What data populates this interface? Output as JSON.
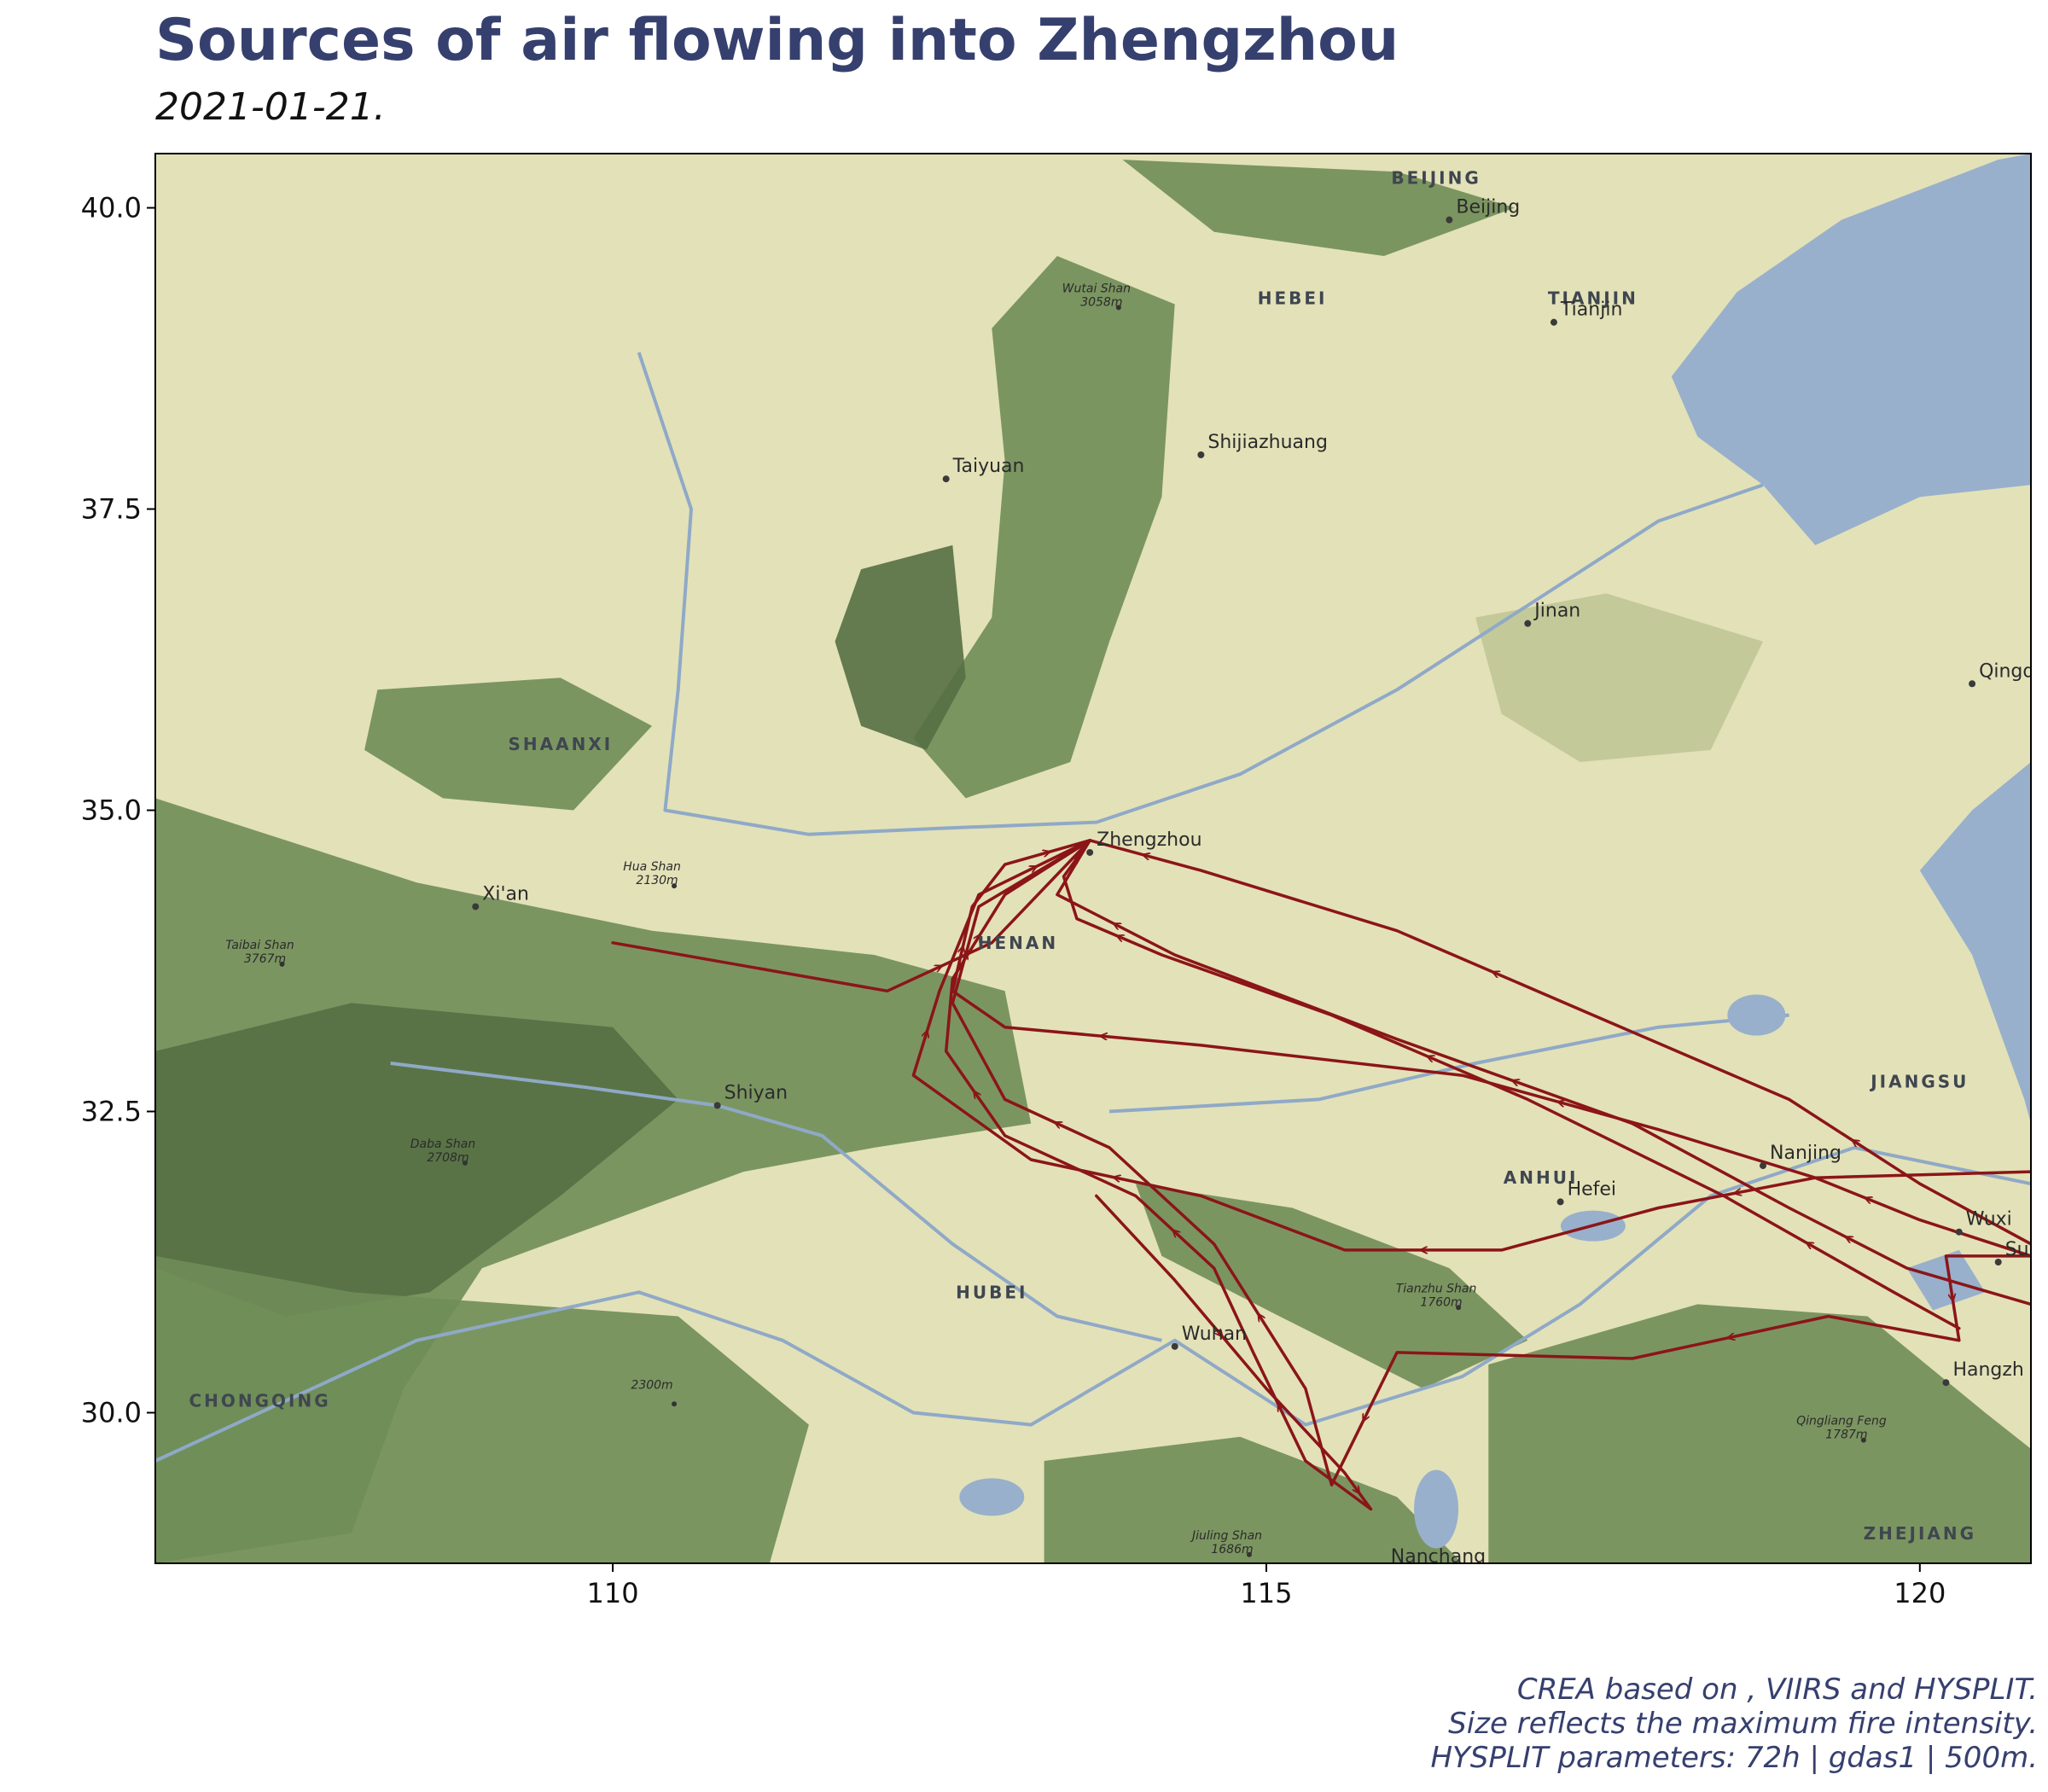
{
  "title": "Sources of air flowing into Zhengzhou",
  "subtitle": "2021-01-21.",
  "caption": [
    "CREA based on , VIIRS and HYSPLIT.",
    "Size reflects the maximum fire intensity.",
    "HYSPLIT parameters: 72h | gdas1 | 500m."
  ],
  "map": {
    "lon_range": [
      106.5,
      120.85
    ],
    "lat_range": [
      28.75,
      40.45
    ],
    "x_ticks": [
      110,
      115,
      120
    ],
    "y_ticks": [
      30.0,
      32.5,
      35.0,
      37.5,
      40.0
    ],
    "colors": {
      "trajectory": "#8b1518",
      "water": "#98b0cc",
      "land": "#e3e1b8",
      "mountain": "#6f8d58",
      "mountain_dark": "#556f44"
    },
    "places": [
      {
        "name": "Beijing",
        "lon": 116.4,
        "lat": 39.9
      },
      {
        "name": "Tianjin",
        "lon": 117.2,
        "lat": 39.05
      },
      {
        "name": "Shijiazhuang",
        "lon": 114.5,
        "lat": 37.95
      },
      {
        "name": "Taiyuan",
        "lon": 112.55,
        "lat": 37.75
      },
      {
        "name": "Jinan",
        "lon": 117.0,
        "lat": 36.55
      },
      {
        "name": "Qingd",
        "lon": 120.4,
        "lat": 36.05
      },
      {
        "name": "Zhengzhou",
        "lon": 113.65,
        "lat": 34.65
      },
      {
        "name": "Xi'an",
        "lon": 108.95,
        "lat": 34.2
      },
      {
        "name": "Shiyan",
        "lon": 110.8,
        "lat": 32.55
      },
      {
        "name": "Nanjing",
        "lon": 118.8,
        "lat": 32.05
      },
      {
        "name": "Hefei",
        "lon": 117.25,
        "lat": 31.75
      },
      {
        "name": "Wuxi",
        "lon": 120.3,
        "lat": 31.5
      },
      {
        "name": "Su",
        "lon": 120.6,
        "lat": 31.25
      },
      {
        "name": "Wuhan",
        "lon": 114.3,
        "lat": 30.55
      },
      {
        "name": "Hangzh",
        "lon": 120.2,
        "lat": 30.25
      },
      {
        "name": "Nanchang",
        "lon": 115.9,
        "lat": 28.7
      }
    ],
    "regions": [
      {
        "name": "BEIJING",
        "lon": 116.3,
        "lat": 40.2
      },
      {
        "name": "HEBEI",
        "lon": 115.2,
        "lat": 39.2
      },
      {
        "name": "TIANJIN",
        "lon": 117.5,
        "lat": 39.2
      },
      {
        "name": "SHAANXI",
        "lon": 109.6,
        "lat": 35.5
      },
      {
        "name": "HENAN",
        "lon": 113.1,
        "lat": 33.85
      },
      {
        "name": "JIANGSU",
        "lon": 120.0,
        "lat": 32.7
      },
      {
        "name": "ANHUI",
        "lon": 117.1,
        "lat": 31.9
      },
      {
        "name": "HUBEI",
        "lon": 112.9,
        "lat": 30.95
      },
      {
        "name": "CHONGQING",
        "lon": 107.3,
        "lat": 30.05
      },
      {
        "name": "ZHEJIANG",
        "lon": 120.0,
        "lat": 28.95
      }
    ],
    "peaks": [
      {
        "name": "Wutai Shan",
        "elev": "3058m",
        "lon": 113.7,
        "lat": 39.3
      },
      {
        "name": "Hua Shan",
        "elev": "2130m",
        "lon": 110.3,
        "lat": 34.5
      },
      {
        "name": "Taibai Shan",
        "elev": "3767m",
        "lon": 107.3,
        "lat": 33.85
      },
      {
        "name": "Daba Shan",
        "elev": "2708m",
        "lon": 108.7,
        "lat": 32.2
      },
      {
        "name": "Tianzhu Shan",
        "elev": "1760m",
        "lon": 116.3,
        "lat": 31.0
      },
      {
        "name": "",
        "elev": "2300m",
        "lon": 110.3,
        "lat": 30.2
      },
      {
        "name": "Qingliang Feng",
        "elev": "1787m",
        "lon": 119.4,
        "lat": 29.9
      },
      {
        "name": "Jiuling Shan",
        "elev": "1686m",
        "lon": 114.7,
        "lat": 28.95
      }
    ],
    "trajectories": [
      [
        [
          113.65,
          34.75
        ],
        [
          113.0,
          34.55
        ],
        [
          112.75,
          34.2
        ],
        [
          112.6,
          33.5
        ],
        [
          113.0,
          33.2
        ],
        [
          114.5,
          33.05
        ],
        [
          116.5,
          32.8
        ],
        [
          118.0,
          32.35
        ],
        [
          119.2,
          31.95
        ],
        [
          120.0,
          31.6
        ],
        [
          120.85,
          31.3
        ]
      ],
      [
        [
          113.65,
          34.75
        ],
        [
          113.45,
          34.45
        ],
        [
          113.55,
          34.1
        ],
        [
          114.2,
          33.8
        ],
        [
          115.5,
          33.3
        ],
        [
          117.0,
          32.6
        ],
        [
          118.5,
          31.8
        ],
        [
          119.8,
          31.0
        ],
        [
          120.3,
          30.7
        ]
      ],
      [
        [
          113.65,
          34.75
        ],
        [
          114.5,
          34.5
        ],
        [
          116.0,
          34.0
        ],
        [
          117.5,
          33.3
        ],
        [
          119.0,
          32.6
        ],
        [
          120.0,
          31.9
        ],
        [
          120.85,
          31.4
        ]
      ],
      [
        [
          113.65,
          34.75
        ],
        [
          113.4,
          34.3
        ],
        [
          114.3,
          33.8
        ],
        [
          116.0,
          33.1
        ],
        [
          117.8,
          32.4
        ],
        [
          119.0,
          31.7
        ],
        [
          119.9,
          31.2
        ],
        [
          120.85,
          30.9
        ]
      ],
      [
        [
          113.65,
          34.75
        ],
        [
          113.0,
          34.3
        ],
        [
          112.6,
          33.6
        ],
        [
          112.55,
          33.0
        ],
        [
          113.0,
          32.3
        ],
        [
          114.0,
          31.8
        ],
        [
          114.6,
          31.2
        ],
        [
          114.9,
          30.5
        ],
        [
          115.3,
          29.6
        ],
        [
          115.8,
          29.2
        ],
        [
          115.6,
          29.5
        ],
        [
          115.0,
          30.2
        ],
        [
          114.3,
          31.1
        ],
        [
          113.7,
          31.8
        ]
      ],
      [
        [
          113.65,
          34.75
        ],
        [
          112.8,
          34.3
        ],
        [
          112.5,
          33.5
        ],
        [
          112.3,
          32.8
        ],
        [
          113.2,
          32.1
        ],
        [
          114.5,
          31.8
        ],
        [
          115.6,
          31.35
        ],
        [
          116.8,
          31.35
        ],
        [
          118.0,
          31.7
        ],
        [
          119.2,
          31.95
        ],
        [
          120.85,
          32.0
        ]
      ],
      [
        [
          113.65,
          34.75
        ],
        [
          112.9,
          33.9
        ],
        [
          112.1,
          33.5
        ],
        [
          110.0,
          33.9
        ]
      ],
      [
        [
          113.65,
          34.75
        ],
        [
          112.8,
          34.2
        ],
        [
          112.6,
          33.4
        ],
        [
          113.0,
          32.6
        ],
        [
          113.8,
          32.2
        ],
        [
          114.6,
          31.4
        ],
        [
          115.3,
          30.2
        ],
        [
          115.5,
          29.4
        ],
        [
          116.0,
          30.5
        ],
        [
          117.8,
          30.45
        ],
        [
          119.3,
          30.8
        ],
        [
          120.3,
          30.6
        ],
        [
          120.2,
          31.3
        ],
        [
          120.85,
          31.3
        ]
      ]
    ]
  }
}
